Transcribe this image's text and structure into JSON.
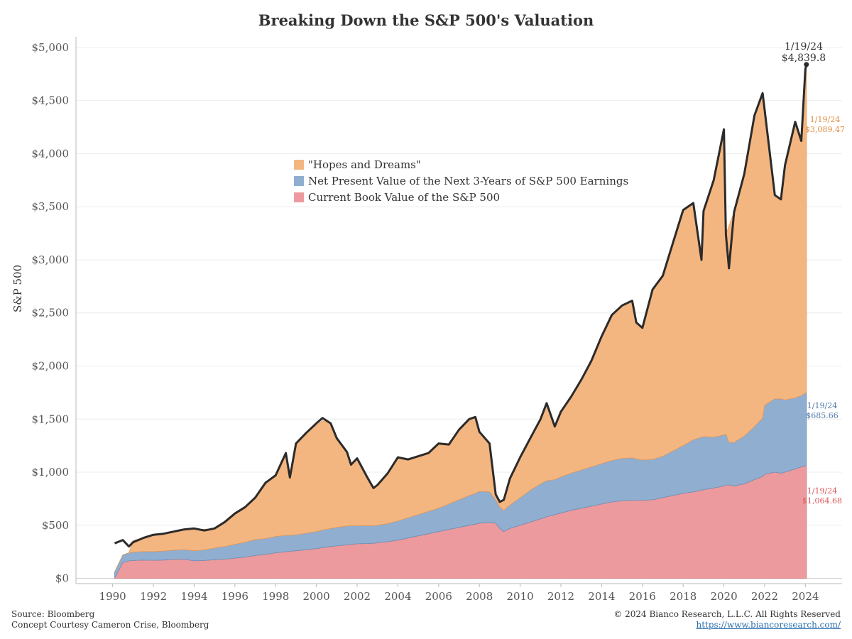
{
  "chart_data": {
    "type": "area",
    "title": "Breaking Down the S&P 500's Valuation",
    "ylabel": "S&P 500",
    "xlabel": "",
    "xlim": [
      1988.2,
      2025.8
    ],
    "ylim": [
      -50,
      5100
    ],
    "y_ticks": [
      0,
      500,
      1000,
      1500,
      2000,
      2500,
      3000,
      3500,
      4000,
      4500,
      5000
    ],
    "y_tick_labels": [
      "$0",
      "$500",
      "$1,000",
      "$1,500",
      "$2,000",
      "$2,500",
      "$3,000",
      "$3,500",
      "$4,000",
      "$4,500",
      "$5,000"
    ],
    "x_ticks": [
      1990,
      1992,
      1994,
      1996,
      1998,
      2000,
      2002,
      2004,
      2006,
      2008,
      2010,
      2012,
      2014,
      2016,
      2018,
      2020,
      2022,
      2024
    ],
    "x_tick_labels": [
      "1990",
      "1992",
      "1994",
      "1996",
      "1998",
      "2000",
      "2002",
      "2004",
      "2006",
      "2008",
      "2010",
      "2012",
      "2014",
      "2016",
      "2018",
      "2020",
      "2022",
      "2024"
    ],
    "legend_position": "center",
    "grid": true,
    "x": [
      1990.1,
      1990.5,
      1990.8,
      1991.0,
      1991.5,
      1992.0,
      1992.5,
      1993.0,
      1993.5,
      1994.0,
      1994.5,
      1995.0,
      1995.5,
      1996.0,
      1996.5,
      1997.0,
      1997.5,
      1998.0,
      1998.5,
      1998.7,
      1999.0,
      1999.5,
      2000.0,
      2000.3,
      2000.7,
      2001.0,
      2001.5,
      2001.7,
      2002.0,
      2002.5,
      2002.8,
      2003.0,
      2003.5,
      2004.0,
      2004.5,
      2005.0,
      2005.5,
      2006.0,
      2006.5,
      2007.0,
      2007.5,
      2007.8,
      2008.0,
      2008.5,
      2008.8,
      2009.0,
      2009.2,
      2009.5,
      2010.0,
      2010.5,
      2011.0,
      2011.3,
      2011.7,
      2012.0,
      2012.5,
      2013.0,
      2013.5,
      2014.0,
      2014.5,
      2015.0,
      2015.5,
      2015.7,
      2016.0,
      2016.5,
      2017.0,
      2017.5,
      2018.0,
      2018.5,
      2018.9,
      2019.0,
      2019.5,
      2020.0,
      2020.1,
      2020.25,
      2020.5,
      2021.0,
      2021.5,
      2021.9,
      2022.0,
      2022.5,
      2022.8,
      2023.0,
      2023.5,
      2023.8,
      2024.0,
      2024.05
    ],
    "series": [
      {
        "name": "Current Book Value of the S&P 500",
        "color": "#ec9a9d",
        "values": [
          0,
          150,
          165,
          168,
          172,
          170,
          172,
          178,
          180,
          165,
          168,
          175,
          180,
          190,
          200,
          215,
          225,
          240,
          250,
          255,
          260,
          270,
          280,
          290,
          300,
          305,
          315,
          320,
          325,
          328,
          330,
          335,
          345,
          360,
          380,
          400,
          420,
          440,
          460,
          480,
          500,
          510,
          520,
          525,
          520,
          470,
          440,
          470,
          500,
          530,
          560,
          580,
          600,
          615,
          640,
          660,
          680,
          700,
          720,
          730,
          735,
          735,
          735,
          740,
          760,
          780,
          800,
          815,
          830,
          835,
          850,
          870,
          880,
          880,
          870,
          890,
          930,
          960,
          980,
          1000,
          990,
          1000,
          1030,
          1050,
          1060,
          1064.68
        ]
      },
      {
        "name": "Net Present Value of the Next 3-Years of S&P 500 Earnings",
        "color": "#90aed0",
        "values": [
          60,
          70,
          75,
          78,
          80,
          82,
          85,
          88,
          90,
          95,
          100,
          110,
          120,
          130,
          140,
          150,
          150,
          155,
          155,
          150,
          150,
          155,
          160,
          165,
          170,
          175,
          178,
          175,
          170,
          168,
          165,
          165,
          170,
          180,
          190,
          200,
          210,
          220,
          240,
          260,
          280,
          290,
          300,
          290,
          220,
          200,
          200,
          220,
          260,
          300,
          330,
          340,
          330,
          340,
          350,
          360,
          370,
          380,
          390,
          400,
          400,
          390,
          380,
          380,
          390,
          420,
          450,
          490,
          500,
          500,
          480,
          480,
          480,
          400,
          410,
          450,
          500,
          550,
          650,
          690,
          700,
          680,
          670,
          670,
          685,
          685.66
        ]
      },
      {
        "name": "\"Hopes and Dreams\"",
        "color": "#f4b680",
        "values": [
          0,
          0,
          0,
          110,
          130,
          150,
          160,
          170,
          185,
          200,
          195,
          180,
          240,
          300,
          340,
          400,
          520,
          580,
          780,
          550,
          860,
          950,
          1000,
          1030,
          990,
          850,
          700,
          580,
          640,
          450,
          350,
          380,
          480,
          600,
          550,
          550,
          550,
          610,
          560,
          660,
          720,
          720,
          570,
          460,
          50,
          50,
          100,
          250,
          380,
          490,
          610,
          730,
          500,
          610,
          720,
          850,
          1000,
          1200,
          1370,
          1440,
          1480,
          1285,
          1245,
          1600,
          1700,
          1960,
          2220,
          2230,
          1670,
          2125,
          2420,
          2880,
          1880,
          2040,
          2170,
          2470,
          2930,
          3060,
          2770,
          1920,
          1880,
          2210,
          2600,
          2400,
          3050,
          3089.47
        ]
      }
    ],
    "price_series": {
      "name": "S&P 500",
      "values": [
        330,
        360,
        300,
        340,
        380,
        410,
        420,
        440,
        460,
        470,
        450,
        470,
        530,
        610,
        670,
        760,
        900,
        970,
        1180,
        950,
        1270,
        1370,
        1460,
        1510,
        1460,
        1320,
        1190,
        1070,
        1130,
        950,
        850,
        880,
        990,
        1140,
        1120,
        1150,
        1180,
        1270,
        1260,
        1400,
        1500,
        1520,
        1380,
        1270,
        790,
        720,
        740,
        940,
        1140,
        1320,
        1500,
        1650,
        1430,
        1570,
        1710,
        1870,
        2050,
        2280,
        2480,
        2570,
        2615,
        2410,
        2360,
        2720,
        2850,
        3160,
        3470,
        3535,
        3000,
        3460,
        3750,
        4230,
        3240,
        2920,
        3450,
        3810,
        4360,
        4570,
        4410,
        3610,
        3570,
        3890,
        4300,
        4120,
        4795,
        4839.8
      ]
    },
    "annotations": [
      {
        "date": "1/19/24",
        "label": "$4,839.8",
        "series": "S&P 500"
      },
      {
        "date": "1/19/24",
        "label": "$3,089.47",
        "series": "\"Hopes and Dreams\""
      },
      {
        "date": "1/19/24",
        "label": "$685.66",
        "series": "Net Present Value of the Next 3-Years of S&P 500 Earnings"
      },
      {
        "date": "1/19/24",
        "label": "$1,064.68",
        "series": "Current Book Value of the S&P 500"
      }
    ]
  },
  "footer": {
    "source": "Source: Bloomberg",
    "concept": "Concept Courtesy Cameron Crise, Bloomberg",
    "copyright": "© 2024 Bianco Research, L.L.C. All Rights Reserved",
    "url": "https://www.biancoresearch.com/"
  }
}
